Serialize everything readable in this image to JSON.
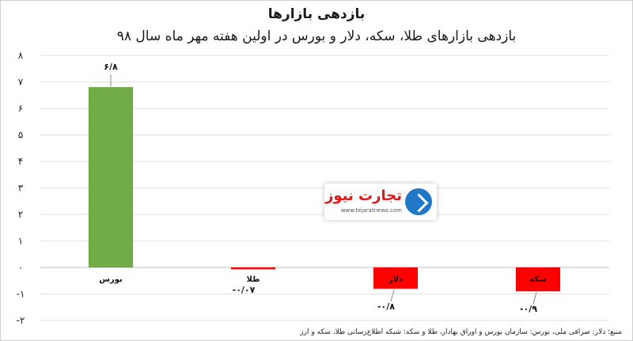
{
  "chart_data": {
    "type": "bar",
    "title": "بازدهی بازارها",
    "subtitle": "بازدهی بازارهای طلا، سکه، دلار و بورس در اولین هفته مهر ماه سال ۹۸",
    "categories": [
      "بورس",
      "طلا",
      "دلار",
      "سکه"
    ],
    "values": [
      6.8,
      -0.07,
      -0.8,
      -0.9
    ],
    "data_labels": [
      "۶/۸",
      "-۰/۰۷",
      "-۰/۸",
      "-۰/۹"
    ],
    "ylim": [
      -2,
      8
    ],
    "yticks": [
      "۸",
      "۷",
      "۶",
      "۵",
      "۴",
      "۳",
      "۲",
      "۱",
      "۰",
      "-۱",
      "-۲"
    ],
    "ytick_values": [
      8,
      7,
      6,
      5,
      4,
      3,
      2,
      1,
      0,
      -1,
      -2
    ],
    "colors": [
      "#70ad47",
      "#ff0000",
      "#ff0000",
      "#ff0000"
    ],
    "grid": true,
    "xlabel": "",
    "ylabel": ""
  },
  "source_note": "منبع؛ دلار: صرافی ملی، بورس: سازمان بورس و اوراق بهادار، طلا و سکه: شبکه اطلاع‌رسانی طلا، سکه و ارز",
  "logo": {
    "name": "تجارت نیوز",
    "url_text": "www.tejaratnews.com"
  }
}
